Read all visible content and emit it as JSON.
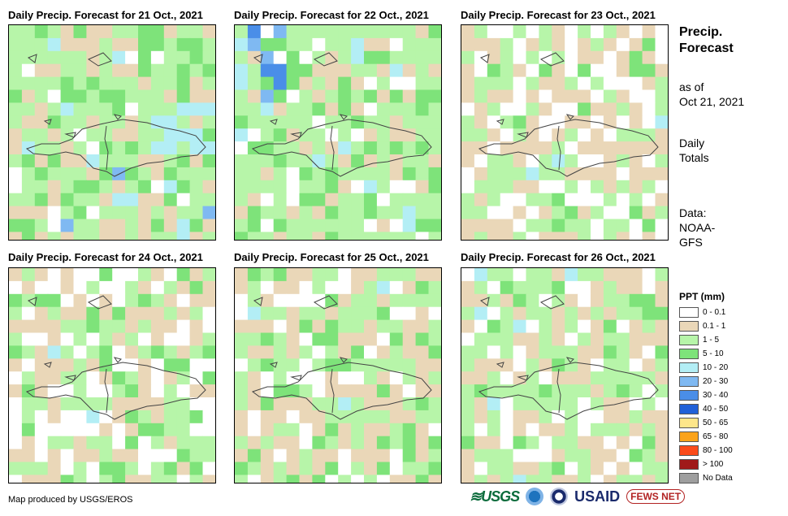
{
  "panels": [
    {
      "title": "Daily Precip. Forecast for 21 Oct., 2021",
      "scene": 0
    },
    {
      "title": "Daily Precip. Forecast for 22 Oct., 2021",
      "scene": 1
    },
    {
      "title": "Daily Precip. Forecast for 23 Oct., 2021",
      "scene": 2
    },
    {
      "title": "Daily Precip. Forecast for 24 Oct., 2021",
      "scene": 3
    },
    {
      "title": "Daily Precip. Forecast for 25 Oct., 2021",
      "scene": 4
    },
    {
      "title": "Daily Precip. Forecast for 26 Oct., 2021",
      "scene": 5
    }
  ],
  "side": {
    "title_line1": "Precip.",
    "title_line2": "Forecast",
    "asof_line1": "as of",
    "asof_line2": "Oct 21, 2021",
    "totals_line1": "Daily",
    "totals_line2": "Totals",
    "data_line1": "Data:",
    "data_line2": "NOAA-",
    "data_line3": "GFS"
  },
  "legend": {
    "title": "PPT (mm)",
    "items": [
      {
        "label": "0 - 0.1",
        "color": "#ffffff"
      },
      {
        "label": "0.1 - 1",
        "color": "#ead7b8"
      },
      {
        "label": "1 - 5",
        "color": "#b7f5a9"
      },
      {
        "label": "5 - 10",
        "color": "#7ee37a"
      },
      {
        "label": "10 - 20",
        "color": "#b3eef5"
      },
      {
        "label": "20 - 30",
        "color": "#7fb9f2"
      },
      {
        "label": "30 - 40",
        "color": "#4a8ee8"
      },
      {
        "label": "40 - 50",
        "color": "#2060d8"
      },
      {
        "label": "50 - 65",
        "color": "#fde68a"
      },
      {
        "label": "65 - 80",
        "color": "#fba31a"
      },
      {
        "label": "80 - 100",
        "color": "#fb4b1a"
      },
      {
        "label": "> 100",
        "color": "#a01a1a"
      },
      {
        "label": "No Data",
        "color": "#9e9e9e"
      }
    ]
  },
  "credit": "Map produced by USGS/EROS",
  "logos": {
    "usgs": "USGS",
    "usaid": "USAID",
    "fews": "FEWS NET"
  }
}
